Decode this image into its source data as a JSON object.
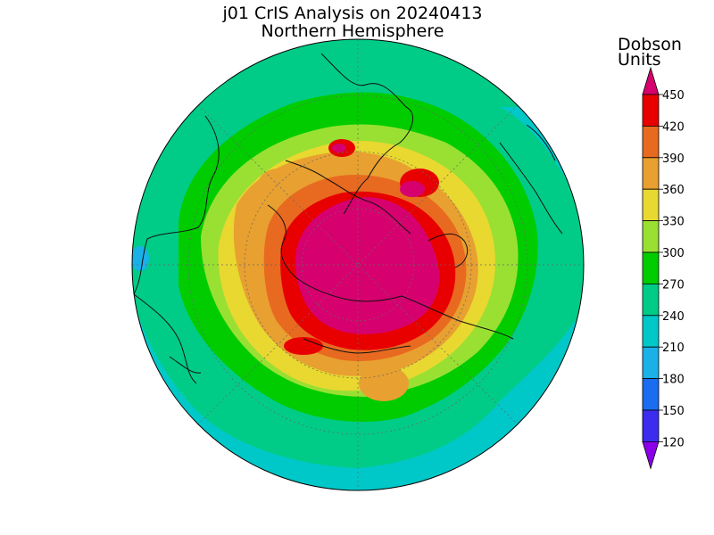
{
  "title": "j01 CrIS Analysis on 20240413",
  "subtitle": "Northern Hemisphere",
  "colorbar": {
    "units_line1": "Dobson",
    "units_line2": "Units",
    "tick_labels": [
      "450",
      "420",
      "390",
      "360",
      "330",
      "300",
      "270",
      "240",
      "210",
      "180",
      "150",
      "120"
    ],
    "levels": [
      120,
      150,
      180,
      210,
      240,
      270,
      300,
      330,
      360,
      390,
      420,
      450
    ],
    "colors": [
      "#8b00e8",
      "#3b2cf0",
      "#1a6cf0",
      "#1ab0e8",
      "#00c8c8",
      "#00cc88",
      "#00cc00",
      "#99e033",
      "#e8d830",
      "#e8a030",
      "#e86a20",
      "#e80000",
      "#d6006e"
    ]
  },
  "map": {
    "projection": "north-polar-stereographic",
    "background_ozone_du": 250
  }
}
